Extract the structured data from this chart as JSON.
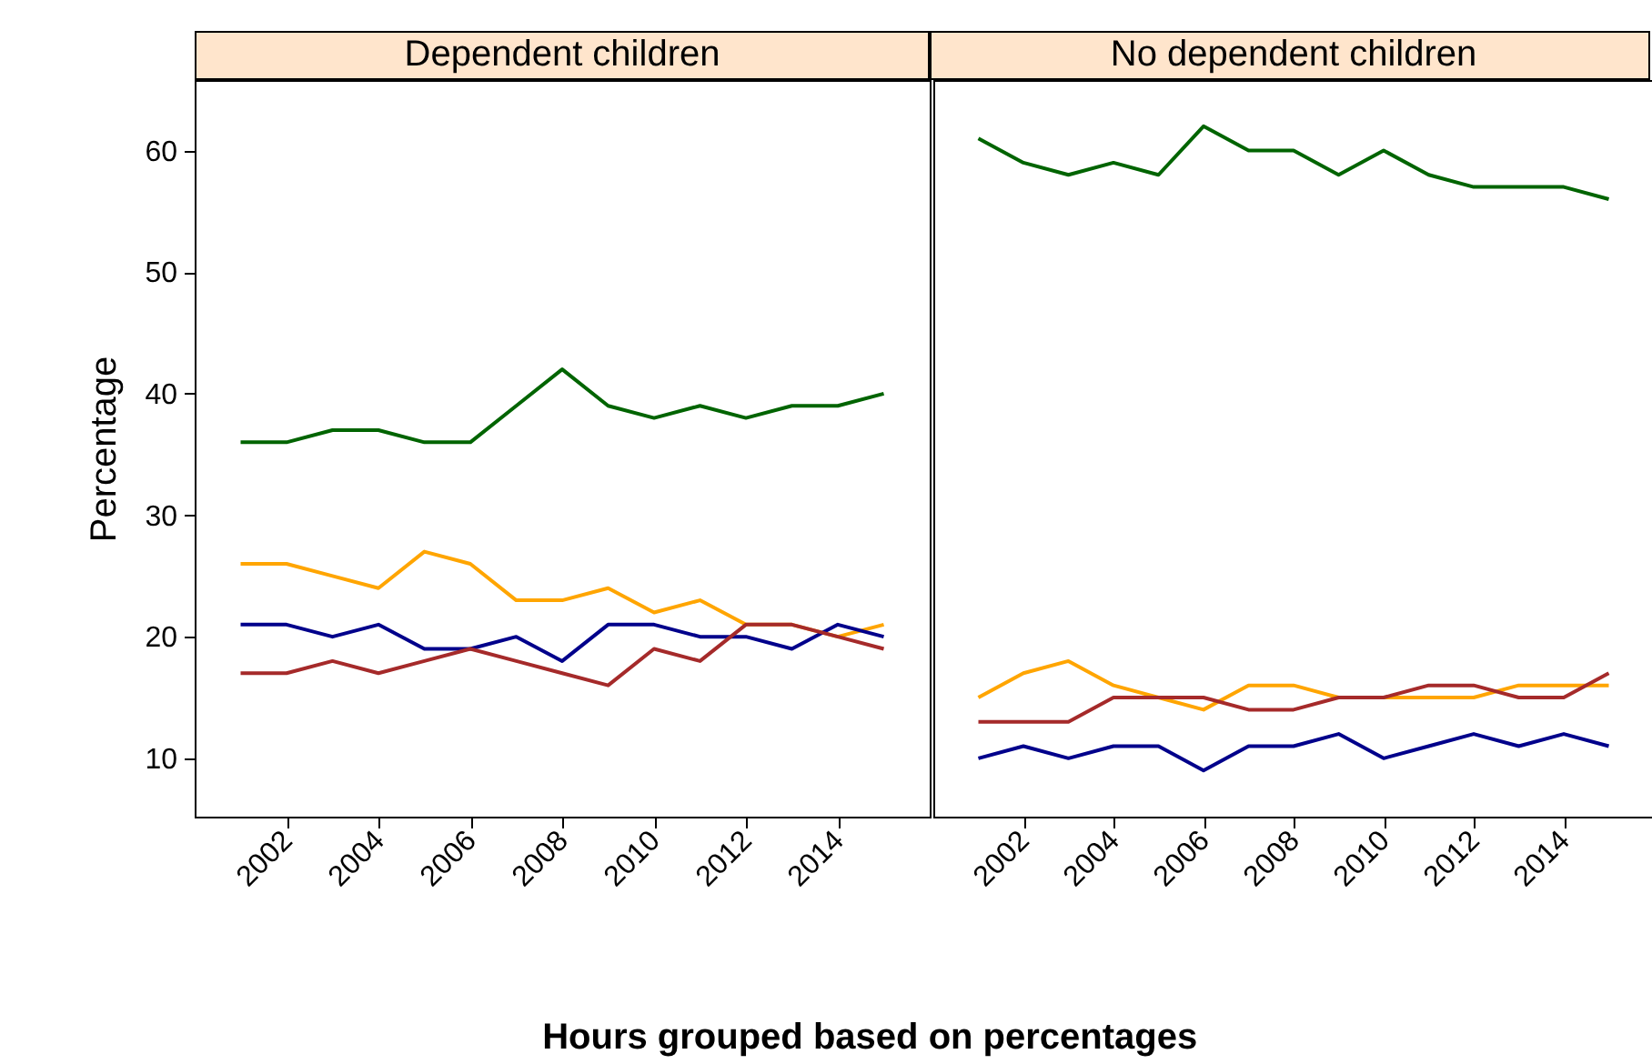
{
  "chart_data": [
    {
      "type": "line",
      "title": "Dependent children",
      "xlabel": "Hours grouped based on percentages",
      "ylabel": "Percentage",
      "x": [
        2001,
        2002,
        2003,
        2004,
        2005,
        2006,
        2007,
        2008,
        2009,
        2010,
        2011,
        2012,
        2013,
        2014,
        2015
      ],
      "xlim": [
        2000,
        2016
      ],
      "xticks": [
        2002,
        2004,
        2006,
        2008,
        2010,
        2012,
        2014
      ],
      "ylim": [
        5.2,
        65.8
      ],
      "yticks": [
        10,
        20,
        30,
        40,
        50,
        60
      ],
      "series": [
        {
          "color": "#006400",
          "values": [
            36,
            36,
            37,
            37,
            36,
            36,
            39,
            42,
            39,
            38,
            39,
            38,
            39,
            39,
            40
          ]
        },
        {
          "color": "#ffa500",
          "values": [
            26,
            26,
            25,
            24,
            27,
            26,
            23,
            23,
            24,
            22,
            23,
            21,
            21,
            20,
            21
          ]
        },
        {
          "color": "#00008b",
          "values": [
            21,
            21,
            20,
            21,
            19,
            19,
            20,
            18,
            21,
            21,
            20,
            20,
            19,
            21,
            20
          ]
        },
        {
          "color": "#a52a2a",
          "values": [
            17,
            17,
            18,
            17,
            18,
            19,
            18,
            17,
            16,
            19,
            18,
            21,
            21,
            20,
            19
          ]
        }
      ]
    },
    {
      "type": "line",
      "title": "No dependent children",
      "x": [
        2001,
        2002,
        2003,
        2004,
        2005,
        2006,
        2007,
        2008,
        2009,
        2010,
        2011,
        2012,
        2013,
        2014,
        2015
      ],
      "xlim": [
        2000,
        2016
      ],
      "xticks": [
        2002,
        2004,
        2006,
        2008,
        2010,
        2012,
        2014
      ],
      "ylim": [
        5.2,
        65.8
      ],
      "yticks": [
        10,
        20,
        30,
        40,
        50,
        60
      ],
      "tick_labels": "x",
      "series": [
        {
          "color": "#006400",
          "values": [
            61,
            59,
            58,
            59,
            58,
            62,
            60,
            60,
            58,
            60,
            58,
            57,
            57,
            57,
            56
          ]
        },
        {
          "color": "#ffa500",
          "values": [
            15,
            17,
            18,
            16,
            15,
            14,
            16,
            16,
            15,
            15,
            15,
            15,
            16,
            16,
            16
          ]
        },
        {
          "color": "#00008b",
          "values": [
            10,
            11,
            10,
            11,
            11,
            9,
            11,
            11,
            12,
            10,
            11,
            12,
            11,
            12,
            11
          ]
        },
        {
          "color": "#a52a2a",
          "values": [
            13,
            13,
            13,
            15,
            15,
            15,
            14,
            14,
            15,
            15,
            16,
            16,
            15,
            15,
            17
          ]
        }
      ]
    }
  ]
}
